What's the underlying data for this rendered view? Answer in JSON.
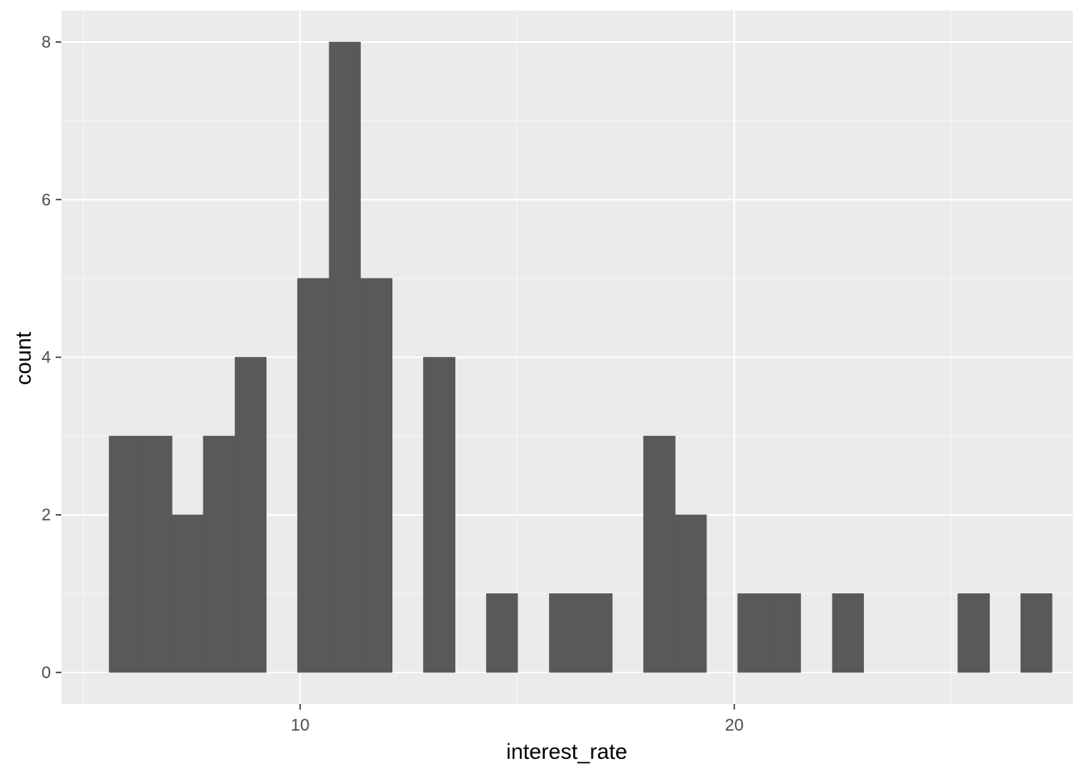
{
  "chart_data": {
    "type": "bar",
    "subtype": "histogram",
    "xlabel": "interest_rate",
    "ylabel": "count",
    "xlim": [
      4.5,
      27.8
    ],
    "ylim": [
      -0.4,
      8.4
    ],
    "x_ticks": [
      10,
      20
    ],
    "y_ticks": [
      0,
      2,
      4,
      6,
      8
    ],
    "x_tick_labels": [
      "10",
      "20"
    ],
    "y_tick_labels": [
      "0",
      "2",
      "4",
      "6",
      "8"
    ],
    "grid": true,
    "bin_width": 0.7241,
    "bins": [
      {
        "x_start": 5.6,
        "x_end": 6.32,
        "count": 3
      },
      {
        "x_start": 6.32,
        "x_end": 7.05,
        "count": 3
      },
      {
        "x_start": 7.05,
        "x_end": 7.77,
        "count": 2
      },
      {
        "x_start": 7.77,
        "x_end": 8.5,
        "count": 3
      },
      {
        "x_start": 8.5,
        "x_end": 9.22,
        "count": 4
      },
      {
        "x_start": 9.22,
        "x_end": 9.94,
        "count": 0
      },
      {
        "x_start": 9.94,
        "x_end": 10.67,
        "count": 5
      },
      {
        "x_start": 10.67,
        "x_end": 11.39,
        "count": 8
      },
      {
        "x_start": 11.39,
        "x_end": 12.12,
        "count": 5
      },
      {
        "x_start": 12.12,
        "x_end": 12.84,
        "count": 0
      },
      {
        "x_start": 12.84,
        "x_end": 13.57,
        "count": 4
      },
      {
        "x_start": 13.57,
        "x_end": 14.29,
        "count": 0
      },
      {
        "x_start": 14.29,
        "x_end": 15.01,
        "count": 1
      },
      {
        "x_start": 15.01,
        "x_end": 15.74,
        "count": 0
      },
      {
        "x_start": 15.74,
        "x_end": 16.46,
        "count": 1
      },
      {
        "x_start": 16.46,
        "x_end": 17.19,
        "count": 1
      },
      {
        "x_start": 17.19,
        "x_end": 17.91,
        "count": 0
      },
      {
        "x_start": 17.91,
        "x_end": 18.64,
        "count": 3
      },
      {
        "x_start": 18.64,
        "x_end": 19.36,
        "count": 2
      },
      {
        "x_start": 19.36,
        "x_end": 20.08,
        "count": 0
      },
      {
        "x_start": 20.08,
        "x_end": 20.81,
        "count": 1
      },
      {
        "x_start": 20.81,
        "x_end": 21.53,
        "count": 1
      },
      {
        "x_start": 21.53,
        "x_end": 22.26,
        "count": 0
      },
      {
        "x_start": 22.26,
        "x_end": 22.98,
        "count": 1
      },
      {
        "x_start": 22.98,
        "x_end": 23.7,
        "count": 0
      },
      {
        "x_start": 23.7,
        "x_end": 24.43,
        "count": 0
      },
      {
        "x_start": 24.43,
        "x_end": 25.15,
        "count": 0
      },
      {
        "x_start": 25.15,
        "x_end": 25.88,
        "count": 1
      },
      {
        "x_start": 25.88,
        "x_end": 26.6,
        "count": 0
      },
      {
        "x_start": 26.6,
        "x_end": 27.32,
        "count": 1
      }
    ]
  },
  "colors": {
    "panel_background": "#ebebeb",
    "grid_major": "#ffffff",
    "grid_minor": "#f5f5f5",
    "bar_fill": "#595959",
    "tick_color": "#333333",
    "tick_label_color": "#4d4d4d"
  }
}
